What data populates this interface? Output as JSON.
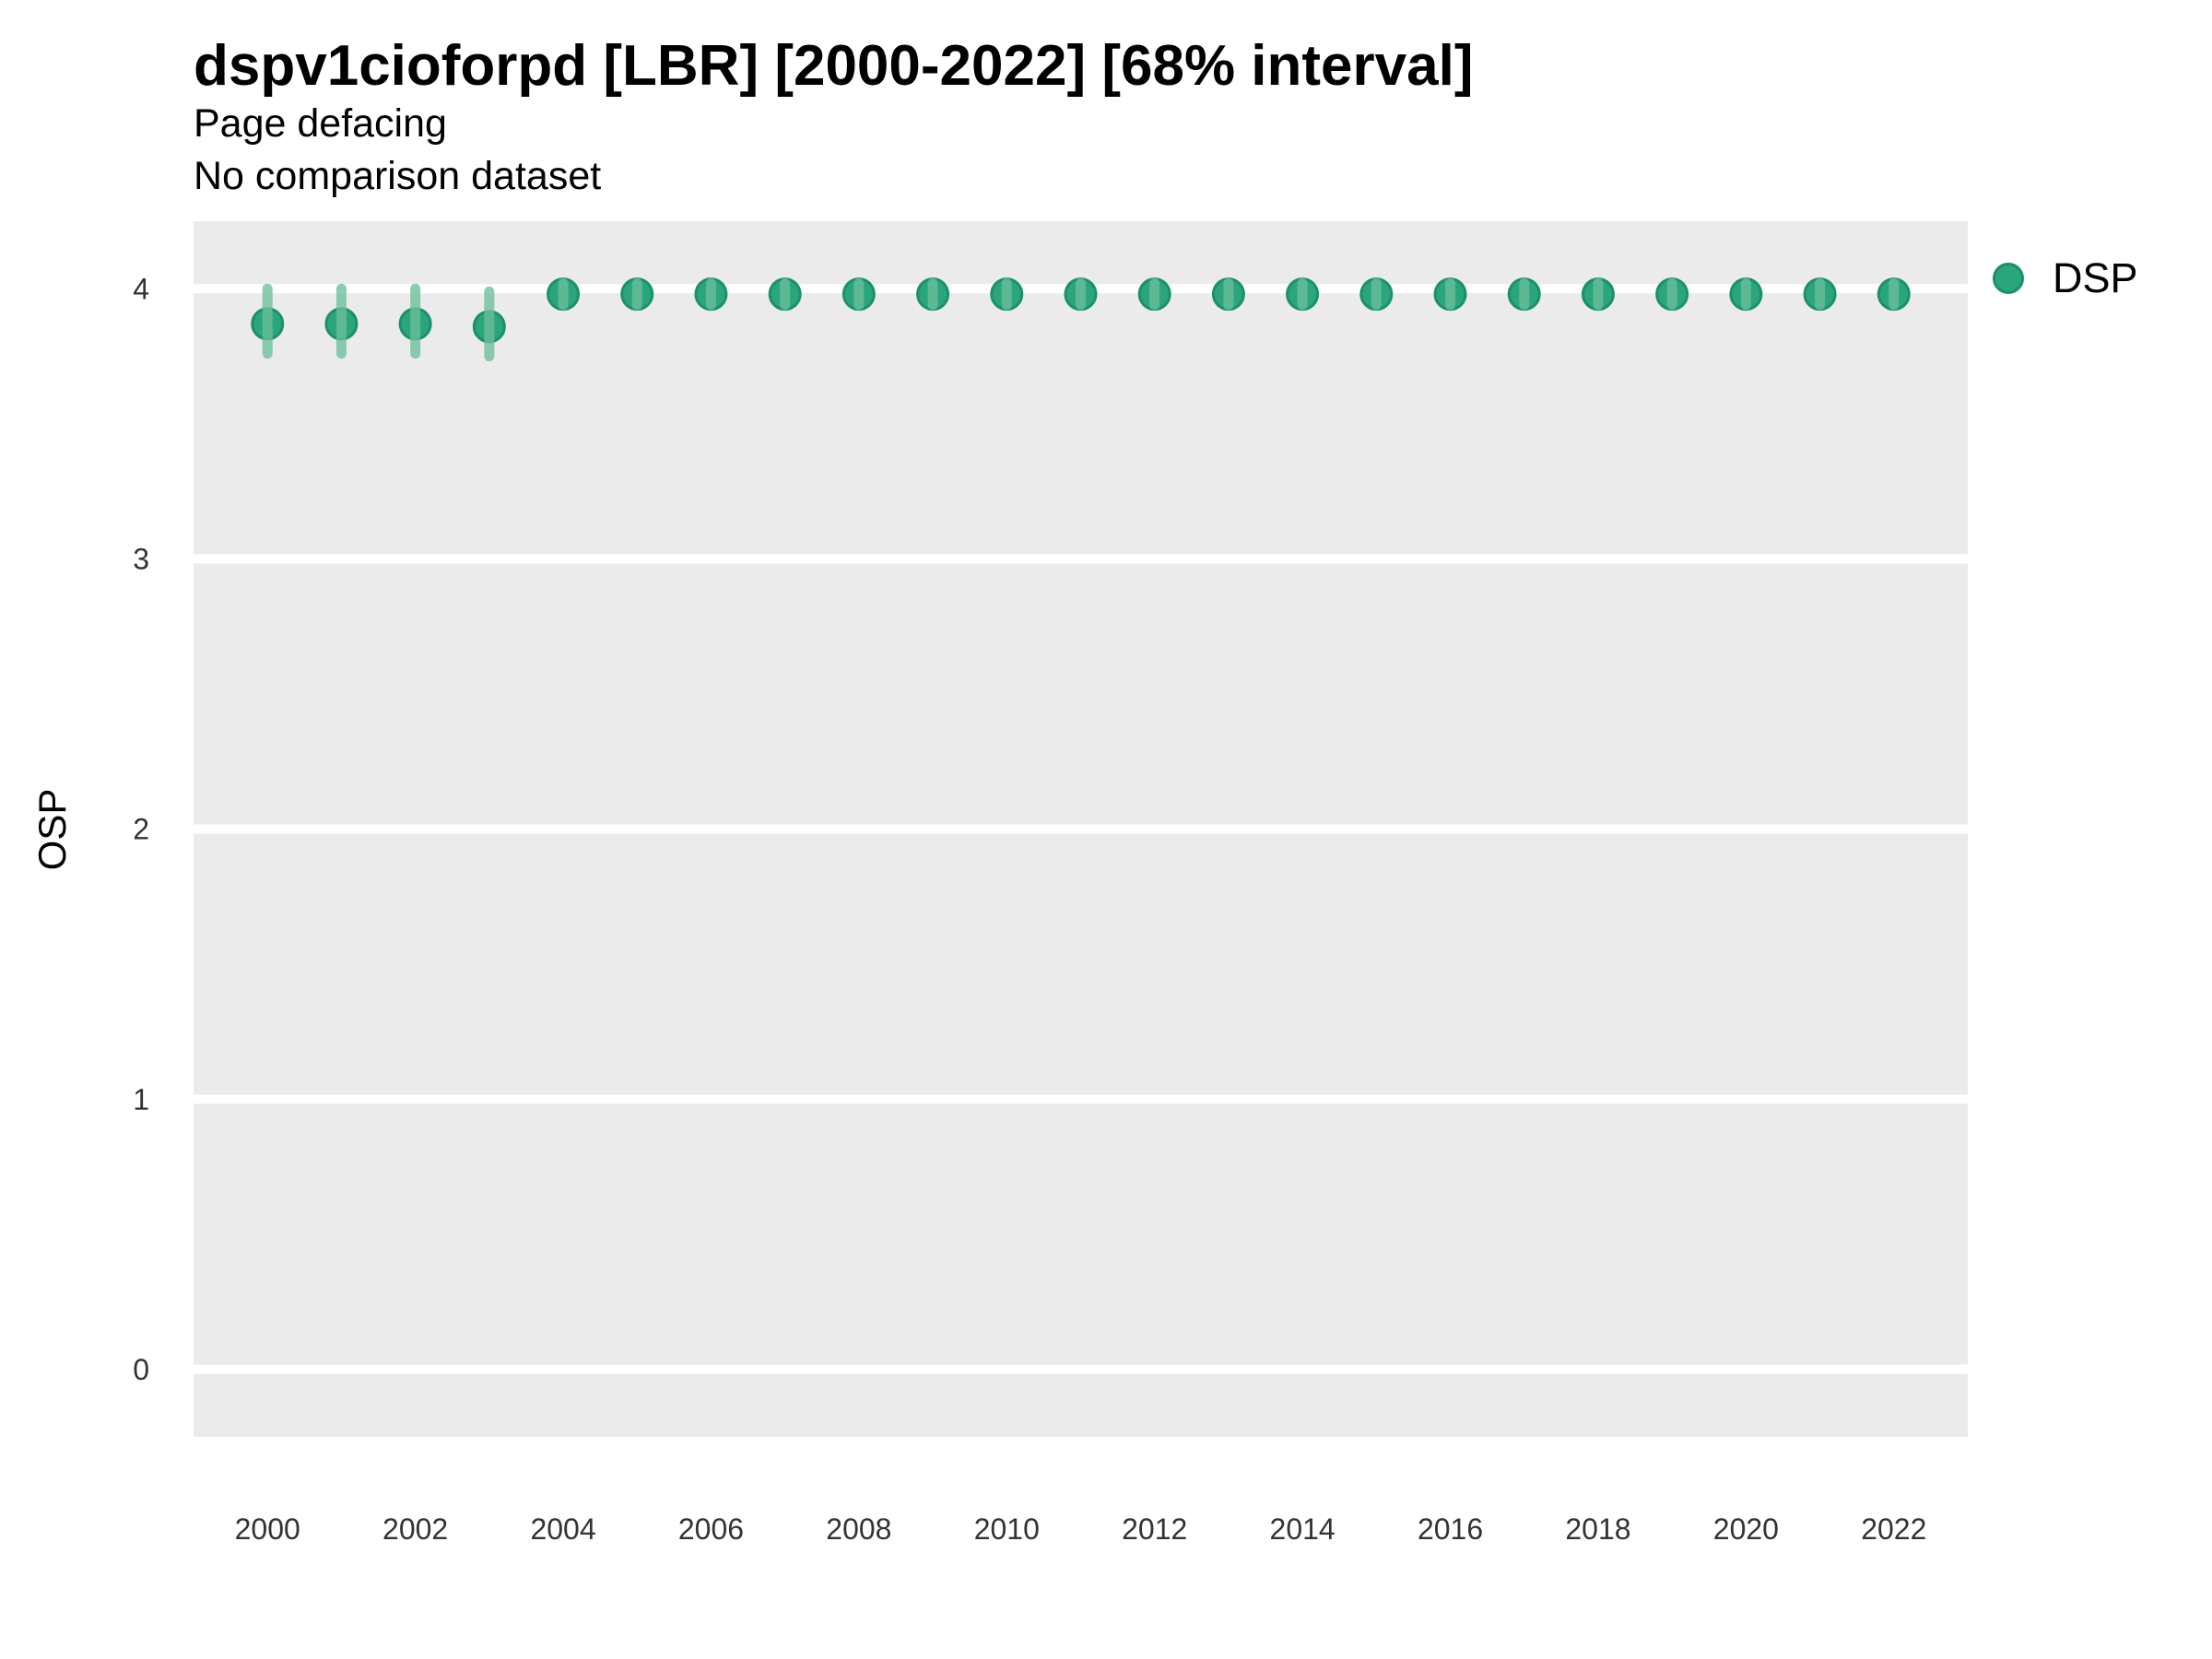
{
  "header": {
    "title": "dspv1cioforpd [LBR] [2000-2022] [68% interval]",
    "subtitle_line1": "Page defacing",
    "subtitle_line2": "No comparison dataset"
  },
  "legend": {
    "entries": [
      {
        "label": "DSP",
        "color": "#2BA57C"
      }
    ],
    "position": "right-top"
  },
  "colors": {
    "panel_background": "#EBEBEB",
    "gridline": "#FFFFFF",
    "point_fill": "#2BA57C",
    "point_stroke": "#1B9069",
    "error_bar": "rgba(106,191,155,0.78)",
    "tick_text": "#333333",
    "title_text": "#000000"
  },
  "chart_data": {
    "type": "scatter",
    "title": "dspv1cioforpd [LBR] [2000-2022] [68% interval]",
    "subtitle": [
      "Page defacing",
      "No comparison dataset"
    ],
    "xlabel": "",
    "ylabel": "OSP",
    "xlim": [
      1999,
      2023
    ],
    "ylim": [
      -0.25,
      4.25
    ],
    "x_ticks": [
      2000,
      2002,
      2004,
      2006,
      2008,
      2010,
      2012,
      2014,
      2016,
      2018,
      2020,
      2022
    ],
    "y_ticks": [
      0,
      1,
      2,
      3,
      4
    ],
    "grid": "horizontal-major-only",
    "legend_position": "right-top",
    "series": [
      {
        "name": "DSP",
        "interval": "68%",
        "points": [
          {
            "x": 2000,
            "y": 3.87,
            "lo": 3.76,
            "hi": 4.0
          },
          {
            "x": 2001,
            "y": 3.87,
            "lo": 3.76,
            "hi": 4.0
          },
          {
            "x": 2002,
            "y": 3.87,
            "lo": 3.76,
            "hi": 4.0
          },
          {
            "x": 2003,
            "y": 3.86,
            "lo": 3.75,
            "hi": 3.99
          },
          {
            "x": 2004,
            "y": 3.98,
            "lo": 3.94,
            "hi": 4.02
          },
          {
            "x": 2005,
            "y": 3.98,
            "lo": 3.94,
            "hi": 4.02
          },
          {
            "x": 2006,
            "y": 3.98,
            "lo": 3.94,
            "hi": 4.02
          },
          {
            "x": 2007,
            "y": 3.98,
            "lo": 3.94,
            "hi": 4.02
          },
          {
            "x": 2008,
            "y": 3.98,
            "lo": 3.94,
            "hi": 4.02
          },
          {
            "x": 2009,
            "y": 3.98,
            "lo": 3.94,
            "hi": 4.02
          },
          {
            "x": 2010,
            "y": 3.98,
            "lo": 3.94,
            "hi": 4.02
          },
          {
            "x": 2011,
            "y": 3.98,
            "lo": 3.94,
            "hi": 4.02
          },
          {
            "x": 2012,
            "y": 3.98,
            "lo": 3.94,
            "hi": 4.02
          },
          {
            "x": 2013,
            "y": 3.98,
            "lo": 3.94,
            "hi": 4.02
          },
          {
            "x": 2014,
            "y": 3.98,
            "lo": 3.94,
            "hi": 4.02
          },
          {
            "x": 2015,
            "y": 3.98,
            "lo": 3.94,
            "hi": 4.02
          },
          {
            "x": 2016,
            "y": 3.98,
            "lo": 3.94,
            "hi": 4.02
          },
          {
            "x": 2017,
            "y": 3.98,
            "lo": 3.94,
            "hi": 4.02
          },
          {
            "x": 2018,
            "y": 3.98,
            "lo": 3.94,
            "hi": 4.02
          },
          {
            "x": 2019,
            "y": 3.98,
            "lo": 3.94,
            "hi": 4.02
          },
          {
            "x": 2020,
            "y": 3.98,
            "lo": 3.94,
            "hi": 4.02
          },
          {
            "x": 2021,
            "y": 3.98,
            "lo": 3.94,
            "hi": 4.02
          },
          {
            "x": 2022,
            "y": 3.98,
            "lo": 3.94,
            "hi": 4.02
          }
        ]
      }
    ]
  }
}
